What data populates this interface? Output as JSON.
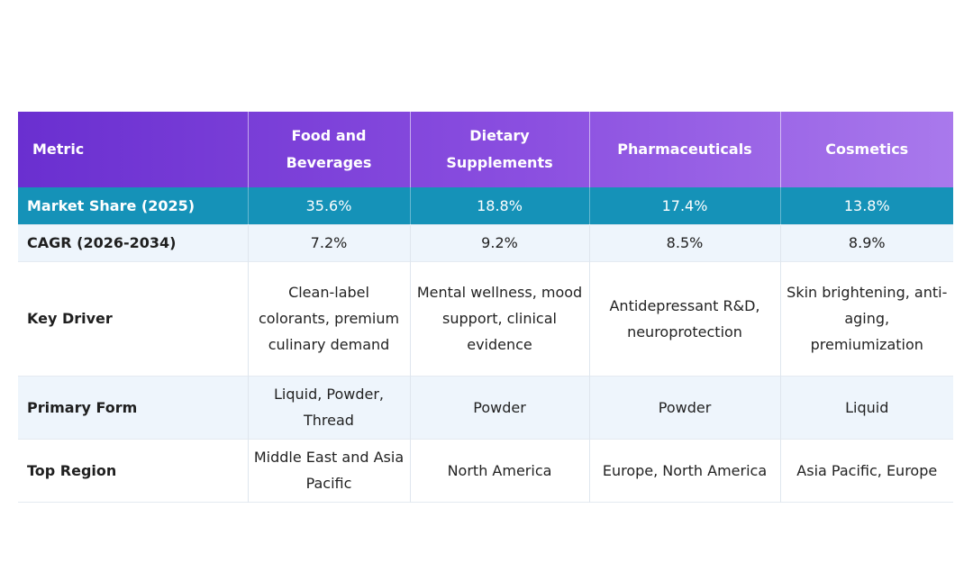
{
  "table": {
    "headers": [
      "Metric",
      "Food and Beverages",
      "Dietary Supplements",
      "Pharmaceuticals",
      "Cosmetics"
    ],
    "rows": [
      {
        "metric": "Market Share (2025)",
        "values": [
          "35.6%",
          "18.8%",
          "17.4%",
          "13.8%"
        ]
      },
      {
        "metric": "CAGR (2026-2034)",
        "values": [
          "7.2%",
          "9.2%",
          "8.5%",
          "8.9%"
        ]
      },
      {
        "metric": "Key Driver",
        "values": [
          "Clean-label colorants, premium culinary demand",
          "Mental wellness, mood support, clinical evidence",
          "Antidepressant R&D, neuroprotection",
          "Skin brightening, anti-aging, premiumization"
        ]
      },
      {
        "metric": "Primary Form",
        "values": [
          "Liquid, Powder, Thread",
          "Powder",
          "Powder",
          "Liquid"
        ]
      },
      {
        "metric": "Top Region",
        "values": [
          "Middle East and Asia Pacific",
          "North America",
          "Europe, North America",
          "Asia Pacific, Europe"
        ]
      }
    ],
    "colors": {
      "header_start": "#6a2fd0",
      "header_end": "#a979ec",
      "highlight_row": "#1592b8",
      "alt_row": "#eef5fc"
    }
  }
}
